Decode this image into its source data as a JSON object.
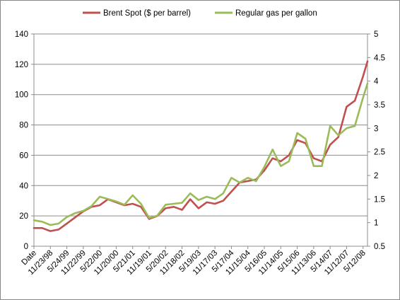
{
  "chart_data": {
    "type": "line",
    "title": "",
    "xlabel": "",
    "ylabel": "",
    "x_tick_labels": [
      "Date",
      "11/23/98",
      "5/24/99",
      "11/22/99",
      "5/22/00",
      "11/20/00",
      "5/21/01",
      "11/19/01",
      "5/20/02",
      "11/18/02",
      "5/19/03",
      "11/17/03",
      "5/17/04",
      "11/15/04",
      "5/16/05",
      "11/14/05",
      "5/15/06",
      "11/13/06",
      "5/14/07",
      "11/12/07",
      "5/12/08"
    ],
    "x_tick_dates": [
      "1998-05-25",
      "1998-11-23",
      "1999-05-24",
      "1999-11-22",
      "2000-05-22",
      "2000-11-20",
      "2001-05-21",
      "2001-11-19",
      "2002-05-20",
      "2002-11-18",
      "2003-05-19",
      "2003-11-17",
      "2004-05-17",
      "2004-11-15",
      "2005-05-16",
      "2005-11-14",
      "2006-05-15",
      "2006-11-13",
      "2007-05-14",
      "2007-11-12",
      "2008-05-12"
    ],
    "y_left": {
      "ylim": [
        0,
        140
      ],
      "ticks": [
        0,
        20,
        40,
        60,
        80,
        100,
        120,
        140
      ]
    },
    "y_right": {
      "ylim": [
        0.5,
        5
      ],
      "ticks": [
        0.5,
        1,
        1.5,
        2,
        2.5,
        3,
        3.5,
        4,
        4.5,
        5
      ],
      "tick_labels": [
        "0.5",
        "1",
        "1.5",
        "2",
        "2.5",
        "3",
        "3.5",
        "4",
        "4.5",
        "5"
      ]
    },
    "grid": "horizontal",
    "legend_position": "top",
    "series": [
      {
        "name": "Brent Spot ($ per barrel)",
        "axis": "left",
        "color": "#C0504D",
        "x": [
          "1998-05-25",
          "1998-08-24",
          "1998-11-23",
          "1999-02-22",
          "1999-05-24",
          "1999-08-23",
          "1999-11-22",
          "2000-02-21",
          "2000-05-22",
          "2000-08-21",
          "2000-11-20",
          "2001-02-19",
          "2001-05-21",
          "2001-08-20",
          "2001-11-19",
          "2002-02-18",
          "2002-05-20",
          "2002-08-19",
          "2002-11-18",
          "2003-02-17",
          "2003-05-19",
          "2003-08-18",
          "2003-11-17",
          "2004-02-16",
          "2004-05-17",
          "2004-08-16",
          "2004-11-15",
          "2005-02-14",
          "2005-05-16",
          "2005-08-15",
          "2005-11-14",
          "2006-02-13",
          "2006-05-15",
          "2006-08-14",
          "2006-11-13",
          "2007-02-12",
          "2007-05-14",
          "2007-08-13",
          "2007-11-12",
          "2008-02-11",
          "2008-05-12",
          "2008-06-30"
        ],
        "values": [
          12,
          12,
          10,
          11,
          15,
          19,
          23,
          26,
          27,
          31,
          29,
          27,
          28,
          26,
          18,
          20,
          25,
          26,
          24,
          31,
          25,
          29,
          28,
          30,
          36,
          42,
          43,
          44,
          50,
          58,
          56,
          60,
          70,
          68,
          58,
          56,
          67,
          72,
          92,
          96,
          112,
          122
        ]
      },
      {
        "name": "Regular gas per gallon",
        "axis": "right",
        "color": "#9BBB59",
        "x": [
          "1998-05-25",
          "1998-08-24",
          "1998-11-23",
          "1999-02-22",
          "1999-05-24",
          "1999-08-23",
          "1999-11-22",
          "2000-02-21",
          "2000-05-22",
          "2000-08-21",
          "2000-11-20",
          "2001-02-19",
          "2001-05-21",
          "2001-08-20",
          "2001-11-19",
          "2002-02-18",
          "2002-05-20",
          "2002-08-19",
          "2002-11-18",
          "2003-02-17",
          "2003-05-19",
          "2003-08-18",
          "2003-11-17",
          "2004-02-16",
          "2004-05-17",
          "2004-08-16",
          "2004-11-15",
          "2005-02-14",
          "2005-05-16",
          "2005-08-15",
          "2005-11-14",
          "2006-02-13",
          "2006-05-15",
          "2006-08-14",
          "2006-11-13",
          "2007-02-12",
          "2007-05-14",
          "2007-08-13",
          "2007-11-12",
          "2008-02-11",
          "2008-05-12",
          "2008-06-30"
        ],
        "values": [
          1.05,
          1.02,
          0.95,
          0.98,
          1.12,
          1.2,
          1.25,
          1.35,
          1.55,
          1.5,
          1.45,
          1.38,
          1.58,
          1.4,
          1.1,
          1.15,
          1.38,
          1.4,
          1.42,
          1.62,
          1.48,
          1.55,
          1.5,
          1.62,
          1.95,
          1.85,
          1.95,
          1.88,
          2.18,
          2.55,
          2.2,
          2.3,
          2.9,
          2.78,
          2.2,
          2.2,
          3.05,
          2.85,
          3.0,
          3.05,
          3.65,
          3.95
        ]
      }
    ]
  }
}
